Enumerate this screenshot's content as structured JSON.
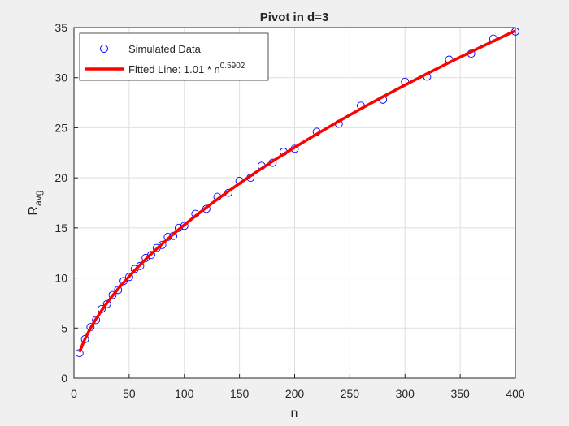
{
  "chart_data": {
    "type": "scatter",
    "title": "Pivot in d=3",
    "xlabel": "n",
    "ylabel": "R",
    "ylabel_sub": "avg",
    "xlim": [
      0,
      400
    ],
    "ylim": [
      0,
      35
    ],
    "xticks": [
      0,
      50,
      100,
      150,
      200,
      250,
      300,
      350,
      400
    ],
    "yticks": [
      0,
      5,
      10,
      15,
      20,
      25,
      30,
      35
    ],
    "grid": true,
    "legend": "top-left",
    "series": [
      {
        "name": "Simulated Data",
        "color": "#0000ff",
        "mode": "markers",
        "x": [
          5,
          10,
          15,
          20,
          25,
          30,
          35,
          40,
          45,
          50,
          55,
          60,
          65,
          70,
          75,
          80,
          85,
          90,
          95,
          100,
          110,
          120,
          130,
          140,
          150,
          160,
          170,
          180,
          190,
          200,
          220,
          240,
          260,
          280,
          300,
          320,
          340,
          360,
          380,
          400
        ],
        "values": [
          2.5,
          3.9,
          5.1,
          5.8,
          6.9,
          7.4,
          8.3,
          8.8,
          9.7,
          10.1,
          10.9,
          11.2,
          12.0,
          12.3,
          13.0,
          13.3,
          14.1,
          14.2,
          15.0,
          15.2,
          16.4,
          16.9,
          18.1,
          18.5,
          19.7,
          20.0,
          21.2,
          21.5,
          22.6,
          22.9,
          24.6,
          25.4,
          27.2,
          27.8,
          29.6,
          30.1,
          31.8,
          32.4,
          33.9,
          34.6
        ]
      },
      {
        "name": "Fitted Line: 1.01 * n",
        "name_sup": "0.5902",
        "color": "#ff0000",
        "mode": "line",
        "x": [
          5,
          10,
          15,
          20,
          25,
          30,
          35,
          40,
          45,
          50,
          55,
          60,
          65,
          70,
          75,
          80,
          85,
          90,
          95,
          100,
          110,
          120,
          130,
          140,
          150,
          160,
          170,
          180,
          190,
          200,
          220,
          240,
          260,
          280,
          300,
          320,
          340,
          360,
          380,
          400
        ],
        "values": [
          2.611,
          3.931,
          4.995,
          5.918,
          6.751,
          7.518,
          8.234,
          8.909,
          9.551,
          10.164,
          10.751,
          11.318,
          11.866,
          12.397,
          12.912,
          13.413,
          13.902,
          14.378,
          14.845,
          15.302,
          16.187,
          17.041,
          17.865,
          18.663,
          19.439,
          20.194,
          20.928,
          21.647,
          22.349,
          23.037,
          24.369,
          25.654,
          26.894,
          28.098,
          29.266,
          30.399,
          31.507,
          32.59,
          33.646,
          34.681
        ]
      }
    ]
  }
}
